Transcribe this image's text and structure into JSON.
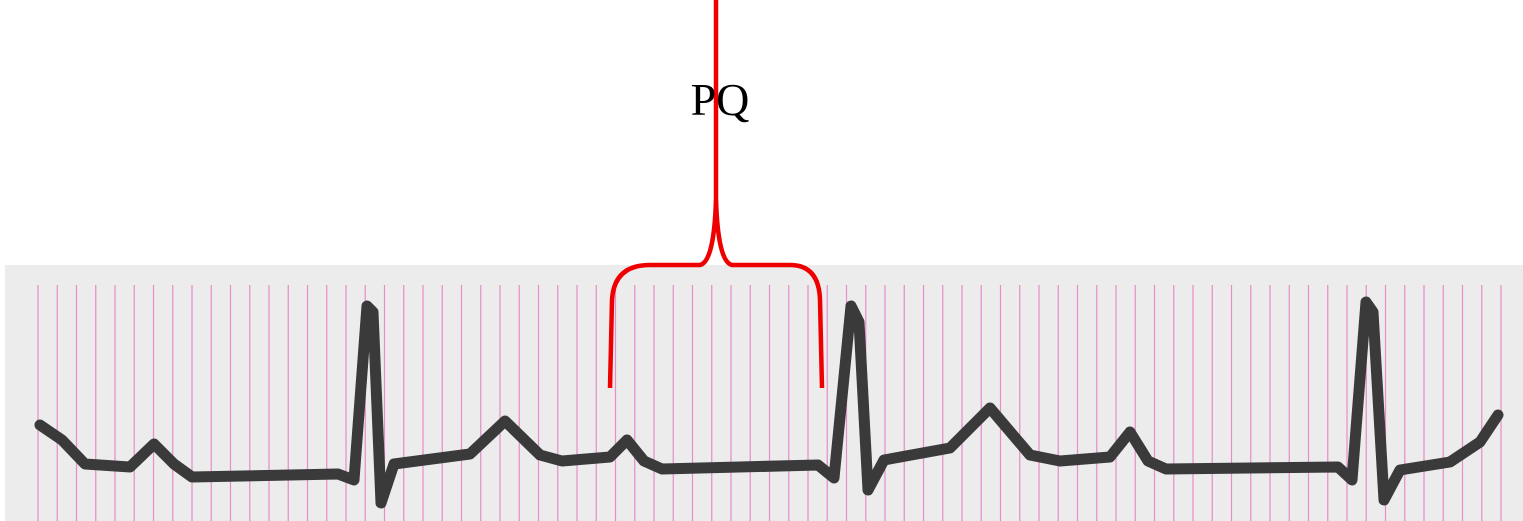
{
  "label": "PQ"
}
